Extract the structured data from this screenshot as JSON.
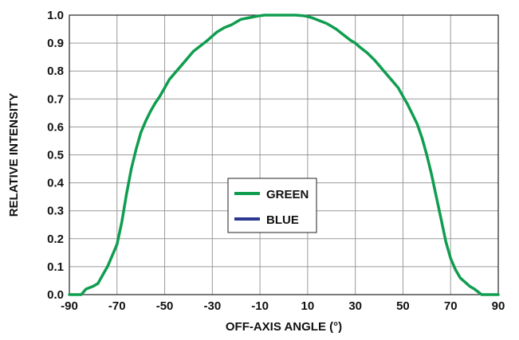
{
  "chart_data": {
    "type": "line",
    "title": "",
    "xlabel": "OFF-AXIS ANGLE (°)",
    "ylabel": "RELATIVE INTENSITY",
    "xlim": [
      -90,
      90
    ],
    "ylim": [
      0,
      1.0
    ],
    "xticks": [
      -90,
      -70,
      -50,
      -30,
      -10,
      10,
      30,
      50,
      70,
      90
    ],
    "yticks": [
      0.0,
      0.1,
      0.2,
      0.3,
      0.4,
      0.5,
      0.6,
      0.7,
      0.8,
      0.9,
      1.0
    ],
    "xtick_labels": [
      "-90",
      "-70",
      "-50",
      "-30",
      "-10",
      "10",
      "30",
      "50",
      "70",
      "90"
    ],
    "ytick_labels": [
      "0.0",
      "0.1",
      "0.2",
      "0.3",
      "0.4",
      "0.5",
      "0.6",
      "0.7",
      "0.8",
      "0.9",
      "1.0"
    ],
    "grid": true,
    "legend_position": "center",
    "series": [
      {
        "name": "GREEN",
        "color": "#0f9d4f",
        "x": [
          -90,
          -85,
          -83,
          -80,
          -78,
          -76,
          -74,
          -72,
          -70,
          -68,
          -66,
          -64,
          -62,
          -60,
          -58,
          -56,
          -54,
          -52,
          -50,
          -48,
          -45,
          -42,
          -40,
          -38,
          -35,
          -32,
          -30,
          -28,
          -25,
          -22,
          -20,
          -18,
          -15,
          -12,
          -10,
          -8,
          -5,
          -2,
          0,
          2,
          5,
          8,
          10,
          12,
          15,
          18,
          20,
          22,
          25,
          28,
          30,
          32,
          35,
          38,
          40,
          42,
          45,
          48,
          50,
          52,
          54,
          56,
          58,
          60,
          62,
          64,
          66,
          68,
          70,
          72,
          74,
          76,
          78,
          80,
          83,
          85,
          90
        ],
        "values": [
          0.0,
          0.0,
          0.02,
          0.03,
          0.04,
          0.07,
          0.1,
          0.14,
          0.18,
          0.26,
          0.36,
          0.45,
          0.52,
          0.58,
          0.62,
          0.655,
          0.685,
          0.71,
          0.74,
          0.77,
          0.8,
          0.83,
          0.85,
          0.87,
          0.89,
          0.91,
          0.925,
          0.94,
          0.955,
          0.965,
          0.975,
          0.985,
          0.99,
          0.995,
          0.998,
          1.0,
          1.0,
          1.0,
          1.0,
          1.0,
          1.0,
          0.998,
          0.995,
          0.99,
          0.98,
          0.97,
          0.96,
          0.95,
          0.93,
          0.91,
          0.9,
          0.885,
          0.865,
          0.84,
          0.82,
          0.8,
          0.77,
          0.74,
          0.71,
          0.68,
          0.645,
          0.61,
          0.56,
          0.5,
          0.43,
          0.35,
          0.27,
          0.19,
          0.13,
          0.09,
          0.06,
          0.045,
          0.03,
          0.02,
          0.0,
          0.0,
          0.0
        ]
      },
      {
        "name": "BLUE",
        "color": "#2b3990",
        "x": [],
        "values": []
      }
    ]
  }
}
